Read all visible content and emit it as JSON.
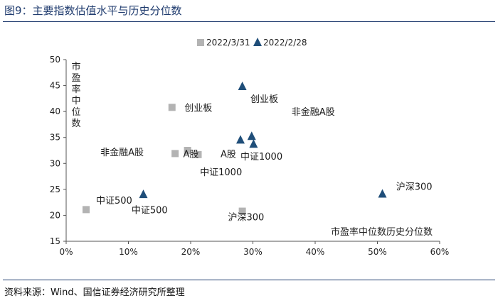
{
  "header": {
    "title": "图9：主要指数估值水平与历史分位数"
  },
  "footer": {
    "source": "资料来源：Wind、国信证券经济研究所整理"
  },
  "colors": {
    "series1": "#b3b3b3",
    "series2": "#1f4e79",
    "rule": "#1f3b6e"
  },
  "chart_data": {
    "type": "scatter",
    "xlabel": "市盈率中位数历史分位数",
    "ylabel": "市盈率中位数",
    "xlim": [
      0,
      0.6
    ],
    "ylim": [
      15,
      50
    ],
    "x_ticks": [
      "0%",
      "10%",
      "20%",
      "30%",
      "40%",
      "50%",
      "60%"
    ],
    "y_ticks": [
      "15",
      "20",
      "25",
      "30",
      "35",
      "40",
      "45",
      "50"
    ],
    "legend_position": "top",
    "grid": false,
    "series": [
      {
        "name": "2022/3/31",
        "marker": "square",
        "points": [
          {
            "label": "创业板",
            "x": 0.17,
            "y": 40.8
          },
          {
            "label": "非金融A股",
            "x": 0.175,
            "y": 31.9
          },
          {
            "label": "A股",
            "x": 0.195,
            "y": 32.5
          },
          {
            "label": "中证1000",
            "x": 0.212,
            "y": 31.7
          },
          {
            "label": "中证500",
            "x": 0.032,
            "y": 21.1
          },
          {
            "label": "沪深300",
            "x": 0.283,
            "y": 20.8
          }
        ]
      },
      {
        "name": "2022/2/28",
        "marker": "triangle",
        "points": [
          {
            "label": "创业板",
            "x": 0.283,
            "y": 44.8
          },
          {
            "label": "非金融A股",
            "x": 0.28,
            "y": 34.5
          },
          {
            "label": "A股",
            "x": 0.298,
            "y": 35.2
          },
          {
            "label": "中证1000",
            "x": 0.301,
            "y": 33.7
          },
          {
            "label": "中证500",
            "x": 0.124,
            "y": 24.0
          },
          {
            "label": "沪深300",
            "x": 0.508,
            "y": 24.1
          }
        ]
      }
    ],
    "annotations": [
      {
        "text": "创业板",
        "x": 0.19,
        "y": 40.8
      },
      {
        "text": "创业板",
        "x": 0.296,
        "y": 42.5
      },
      {
        "text": "非金融A股",
        "x": 0.362,
        "y": 40.0
      },
      {
        "text": "非金融A股",
        "x": 0.055,
        "y": 32.2
      },
      {
        "text": "A股",
        "x": 0.188,
        "y": 31.9
      },
      {
        "text": "A股",
        "x": 0.248,
        "y": 31.9
      },
      {
        "text": "中证1000",
        "x": 0.28,
        "y": 31.4
      },
      {
        "text": "中证1000",
        "x": 0.215,
        "y": 28.4
      },
      {
        "text": "中证500",
        "x": 0.048,
        "y": 22.9
      },
      {
        "text": "中证500",
        "x": 0.105,
        "y": 21.1
      },
      {
        "text": "沪深300",
        "x": 0.53,
        "y": 25.6
      },
      {
        "text": "沪深300",
        "x": 0.26,
        "y": 19.7
      }
    ]
  }
}
